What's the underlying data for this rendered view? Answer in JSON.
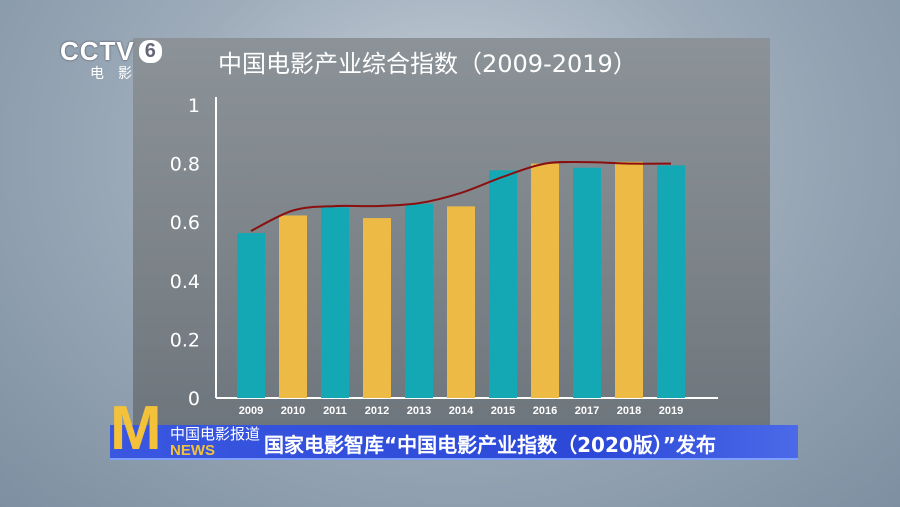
{
  "channel": {
    "logo": "CCTV",
    "number": "6",
    "subtitle": "电影"
  },
  "banner": {
    "source": "中国电影报道",
    "news": "NEWS",
    "logo_letter": "M",
    "headline": "国家电影智库“中国电影产业指数（2020版）”发布"
  },
  "colors": {
    "teal": "#14a8b4",
    "yellow": "#edbb45",
    "line": "#8a1010"
  },
  "chart_data": {
    "type": "bar",
    "title": "中国电影产业综合指数（2009-2019）",
    "categories": [
      "2009",
      "2010",
      "2011",
      "2012",
      "2013",
      "2014",
      "2015",
      "2016",
      "2017",
      "2018",
      "2019"
    ],
    "values": [
      0.563,
      0.623,
      0.651,
      0.614,
      0.663,
      0.654,
      0.777,
      0.8,
      0.786,
      0.806,
      0.794
    ],
    "trend_line": [
      0.57,
      0.64,
      0.655,
      0.655,
      0.665,
      0.7,
      0.755,
      0.8,
      0.805,
      0.8,
      0.8
    ],
    "yticks": [
      "0",
      "0.2",
      "0.4",
      "0.6",
      "0.8",
      "1"
    ],
    "ylim": [
      0,
      1
    ],
    "xlabel": "",
    "ylabel": "",
    "grid": false,
    "legend": "none"
  }
}
